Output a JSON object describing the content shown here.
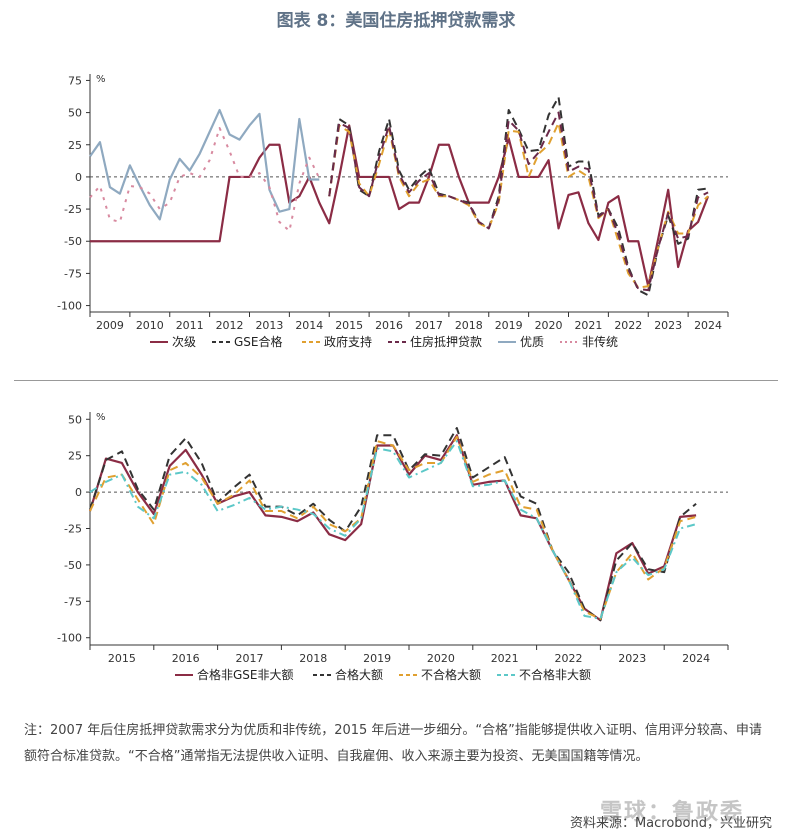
{
  "title": "图表 8：美国住房抵押贷款需求",
  "note": "注：2007 年后住房抵押贷款需求分为优质和非传统，2015 年后进一步细分。“合格”指能够提供收入证明、信用评分较高、申请额符合标准贷款。“不合格”通常指无法提供收入证明、自我雇佣、收入来源主要为投资、无美国国籍等情况。",
  "source": "资料来源：Macrobond，兴业研究",
  "watermark": "雪球：鲁政委",
  "chart_data": [
    {
      "type": "line",
      "ylabel": "%",
      "ylim": [
        -105,
        80
      ],
      "yticks": [
        75,
        50,
        25,
        0,
        -25,
        -50,
        -75,
        -100
      ],
      "xlim": [
        2009.0,
        2025.0
      ],
      "x_tick_labels": [
        "2009",
        "2010",
        "2011",
        "2012",
        "2013",
        "2014",
        "2015",
        "2016",
        "2017",
        "2018",
        "2019",
        "2020",
        "2021",
        "2022",
        "2023",
        "2024"
      ],
      "zero_line": true,
      "legend_position": "bottom",
      "series": [
        {
          "name": "次级",
          "color": "#8b2c45",
          "dash": "solid",
          "x": [
            2009.0,
            2011.0,
            2011.25,
            2011.5,
            2011.75,
            2012.0,
            2012.25,
            2012.5,
            2012.75,
            2013.0,
            2013.25,
            2013.5,
            2013.75,
            2014.0,
            2014.25,
            2014.5,
            2014.75,
            2015.0,
            2015.25,
            2015.5,
            2015.75,
            2016.0,
            2016.25,
            2016.5,
            2016.75,
            2017.0,
            2017.25,
            2017.5,
            2017.75,
            2018.0,
            2018.25,
            2018.5,
            2018.75,
            2019.0,
            2019.25,
            2019.5,
            2019.75,
            2020.0,
            2020.25,
            2020.5,
            2020.75,
            2021.0,
            2021.25,
            2021.5,
            2021.75,
            2022.0,
            2022.25,
            2022.5,
            2022.75,
            2023.0,
            2023.25,
            2023.5,
            2023.75,
            2024.0,
            2024.25,
            2024.5
          ],
          "values": [
            -50,
            -50,
            -50,
            -50,
            -50,
            -50,
            -50,
            0,
            0,
            0,
            15,
            25,
            25,
            -20,
            -15,
            0,
            -20,
            -36,
            0,
            40,
            0,
            0,
            0,
            0,
            -25,
            -20,
            -20,
            0,
            25,
            25,
            0,
            -20,
            -20,
            -20,
            0,
            30,
            0,
            0,
            0,
            13,
            -40,
            -14,
            -12,
            -36,
            -49,
            -20,
            -15,
            -50,
            -50,
            -85,
            -48,
            -10,
            -70,
            -42,
            -35,
            -15
          ]
        },
        {
          "name": "GSE合格",
          "color": "#333333",
          "dash": "8,5",
          "x": [
            2015.0,
            2015.25,
            2015.5,
            2015.75,
            2016.0,
            2016.25,
            2016.5,
            2016.75,
            2017.0,
            2017.25,
            2017.5,
            2017.75,
            2018.0,
            2018.25,
            2018.5,
            2018.75,
            2019.0,
            2019.25,
            2019.5,
            2019.75,
            2020.0,
            2020.25,
            2020.5,
            2020.75,
            2021.0,
            2021.25,
            2021.5,
            2021.75,
            2022.0,
            2022.25,
            2022.5,
            2022.75,
            2023.0,
            2023.25,
            2023.5,
            2023.75,
            2024.0,
            2024.25,
            2024.5
          ],
          "values": [
            -15,
            45,
            40,
            -10,
            -15,
            20,
            45,
            5,
            -10,
            0,
            7,
            -13,
            -15,
            -18,
            -20,
            -35,
            -40,
            -15,
            52,
            37,
            20,
            21,
            48,
            62,
            8,
            12,
            12,
            -30,
            -25,
            -40,
            -70,
            -88,
            -92,
            -55,
            -30,
            -52,
            -48,
            -10,
            -9
          ]
        },
        {
          "name": "政府支持",
          "color": "#e0a030",
          "dash": "8,5",
          "x": [
            2015.0,
            2015.25,
            2015.5,
            2015.75,
            2016.0,
            2016.25,
            2016.5,
            2016.75,
            2017.0,
            2017.25,
            2017.5,
            2017.75,
            2018.0,
            2018.25,
            2018.5,
            2018.75,
            2019.0,
            2019.25,
            2019.5,
            2019.75,
            2020.0,
            2020.25,
            2020.5,
            2020.75,
            2021.0,
            2021.25,
            2021.5,
            2021.75,
            2022.0,
            2022.25,
            2022.5,
            2022.75,
            2023.0,
            2023.25,
            2023.5,
            2023.75,
            2024.0,
            2024.25,
            2024.5
          ],
          "values": [
            -15,
            40,
            35,
            -5,
            -15,
            10,
            37,
            0,
            -15,
            -5,
            -2,
            -15,
            -15,
            -18,
            -22,
            -36,
            -40,
            -20,
            36,
            35,
            0,
            18,
            25,
            42,
            0,
            5,
            0,
            -32,
            -25,
            -50,
            -75,
            -86,
            -85,
            -55,
            -27,
            -44,
            -44,
            -22,
            -15
          ]
        },
        {
          "name": "住房抵押贷款",
          "color": "#6b2a4a",
          "dash": "8,5",
          "x": [
            2015.0,
            2015.25,
            2015.5,
            2015.75,
            2016.0,
            2016.25,
            2016.5,
            2016.75,
            2017.0,
            2017.25,
            2017.5,
            2017.75,
            2018.0,
            2018.25,
            2018.5,
            2018.75,
            2019.0,
            2019.25,
            2019.5,
            2019.75,
            2020.0,
            2020.25,
            2020.5,
            2020.75,
            2021.0,
            2021.25,
            2021.5,
            2021.75,
            2022.0,
            2022.25,
            2022.5,
            2022.75,
            2023.0,
            2023.25,
            2023.5,
            2023.75,
            2024.0,
            2024.25,
            2024.5
          ],
          "values": [
            -15,
            42,
            38,
            -8,
            -15,
            15,
            40,
            2,
            -12,
            -3,
            3,
            -14,
            -15,
            -18,
            -21,
            -35,
            -40,
            -18,
            44,
            36,
            10,
            19,
            35,
            50,
            4,
            8,
            6,
            -31,
            -25,
            -45,
            -72,
            -87,
            -88,
            -55,
            -28,
            -48,
            -46,
            -16,
            -12
          ]
        },
        {
          "name": "优质",
          "color": "#8fa9c0",
          "dash": "solid",
          "x": [
            2009.0,
            2009.25,
            2009.5,
            2009.75,
            2010.0,
            2010.25,
            2010.5,
            2010.75,
            2011.0,
            2011.25,
            2011.5,
            2011.75,
            2012.0,
            2012.25,
            2012.5,
            2012.75,
            2013.0,
            2013.25,
            2013.5,
            2013.75,
            2014.0,
            2014.25,
            2014.5,
            2014.75
          ],
          "values": [
            16,
            27,
            -8,
            -13,
            9,
            -7,
            -22,
            -33,
            -2,
            14,
            5,
            18,
            35,
            52,
            33,
            29,
            40,
            49,
            -10,
            -27,
            -25,
            45,
            -2,
            -2
          ]
        },
        {
          "name": "非传统",
          "color": "#d88aa0",
          "dash": "3,6",
          "x": [
            2009.0,
            2009.25,
            2009.5,
            2009.75,
            2010.0,
            2010.25,
            2010.5,
            2010.75,
            2011.0,
            2011.25,
            2011.5,
            2011.75,
            2012.0,
            2012.25,
            2012.5,
            2012.75,
            2013.0,
            2013.25,
            2013.5,
            2013.75,
            2014.0,
            2014.25,
            2014.5,
            2014.75
          ],
          "values": [
            -16,
            -7,
            -33,
            -35,
            -7,
            -8,
            -13,
            -25,
            -20,
            0,
            3,
            0,
            13,
            38,
            20,
            0,
            0,
            3,
            -8,
            -35,
            -42,
            -5,
            15,
            -1
          ]
        }
      ]
    },
    {
      "type": "line",
      "ylabel": "%",
      "ylim": [
        -105,
        55
      ],
      "yticks": [
        50,
        25,
        0,
        -25,
        -50,
        -75,
        -100
      ],
      "xlim": [
        2015.0,
        2025.0
      ],
      "x_tick_labels": [
        "2015",
        "2016",
        "2017",
        "2018",
        "2019",
        "2020",
        "2021",
        "2022",
        "2023",
        "2024"
      ],
      "zero_line": true,
      "legend_position": "bottom",
      "series": [
        {
          "name": "合格非GSE非大额",
          "color": "#8b2c45",
          "dash": "solid",
          "x": [
            2015.0,
            2015.25,
            2015.5,
            2015.75,
            2016.0,
            2016.25,
            2016.5,
            2016.75,
            2017.0,
            2017.25,
            2017.5,
            2017.75,
            2018.0,
            2018.25,
            2018.5,
            2018.75,
            2019.0,
            2019.25,
            2019.5,
            2019.75,
            2020.0,
            2020.25,
            2020.5,
            2020.75,
            2021.0,
            2021.25,
            2021.5,
            2021.75,
            2022.0,
            2022.25,
            2022.5,
            2022.75,
            2023.0,
            2023.25,
            2023.5,
            2023.75,
            2024.0,
            2024.25,
            2024.5
          ],
          "values": [
            -13,
            23,
            20,
            0,
            -15,
            18,
            29,
            12,
            -8,
            -3,
            0,
            -16,
            -17,
            -20,
            -14,
            -29,
            -33,
            -22,
            32,
            32,
            12,
            25,
            22,
            39,
            5,
            7,
            8,
            -16,
            -18,
            -40,
            -60,
            -80,
            -88,
            -42,
            -35,
            -56,
            -51,
            -17,
            -16
          ]
        },
        {
          "name": "合格大额",
          "color": "#333333",
          "dash": "8,5",
          "x": [
            2015.0,
            2015.25,
            2015.5,
            2015.75,
            2016.0,
            2016.25,
            2016.5,
            2016.75,
            2017.0,
            2017.25,
            2017.5,
            2017.75,
            2018.0,
            2018.25,
            2018.5,
            2018.75,
            2019.0,
            2019.25,
            2019.5,
            2019.75,
            2020.0,
            2020.25,
            2020.5,
            2020.75,
            2021.0,
            2021.25,
            2021.5,
            2021.75,
            2022.0,
            2022.25,
            2022.5,
            2022.75,
            2023.0,
            2023.25,
            2023.5,
            2023.75,
            2024.0,
            2024.25,
            2024.5
          ],
          "values": [
            -12,
            22,
            28,
            2,
            -12,
            25,
            37,
            20,
            -7,
            3,
            12,
            -10,
            -10,
            -16,
            -8,
            -19,
            -27,
            -10,
            39,
            39,
            15,
            26,
            25,
            44,
            10,
            17,
            24,
            -3,
            -8,
            -40,
            -55,
            -80,
            -88,
            -47,
            -35,
            -53,
            -55,
            -17,
            -8
          ]
        },
        {
          "name": "不合格大额",
          "color": "#e0a030",
          "dash": "8,5",
          "x": [
            2015.0,
            2015.25,
            2015.5,
            2015.75,
            2016.0,
            2016.25,
            2016.5,
            2016.75,
            2017.0,
            2017.25,
            2017.5,
            2017.75,
            2018.0,
            2018.25,
            2018.5,
            2018.75,
            2019.0,
            2019.25,
            2019.5,
            2019.75,
            2020.0,
            2020.25,
            2020.5,
            2020.75,
            2021.0,
            2021.25,
            2021.5,
            2021.75,
            2022.0,
            2022.25,
            2022.5,
            2022.75,
            2023.0,
            2023.25,
            2023.5,
            2023.75,
            2024.0,
            2024.25,
            2024.5
          ],
          "values": [
            -13,
            10,
            12,
            -5,
            -22,
            15,
            20,
            10,
            -8,
            -2,
            8,
            -13,
            -13,
            -18,
            -10,
            -22,
            -27,
            -18,
            35,
            32,
            15,
            20,
            20,
            38,
            7,
            12,
            15,
            -10,
            -12,
            -40,
            -60,
            -82,
            -87,
            -55,
            -42,
            -60,
            -52,
            -20,
            -17
          ]
        },
        {
          "name": "不合格非大额",
          "color": "#5cc8c8",
          "dash": "8,4,2,4",
          "x": [
            2015.0,
            2015.25,
            2015.5,
            2015.75,
            2016.0,
            2016.25,
            2016.5,
            2016.75,
            2017.0,
            2017.25,
            2017.5,
            2017.75,
            2018.0,
            2018.25,
            2018.5,
            2018.75,
            2019.0,
            2019.25,
            2019.5,
            2019.75,
            2020.0,
            2020.25,
            2020.5,
            2020.75,
            2021.0,
            2021.25,
            2021.5,
            2021.75,
            2022.0,
            2022.25,
            2022.5,
            2022.75,
            2023.0,
            2023.25,
            2023.5,
            2023.75,
            2024.0,
            2024.25,
            2024.5
          ],
          "values": [
            0,
            7,
            12,
            -10,
            -18,
            12,
            14,
            5,
            -13,
            -9,
            -4,
            -12,
            -10,
            -12,
            -15,
            -25,
            -30,
            -18,
            30,
            28,
            10,
            15,
            20,
            35,
            4,
            5,
            8,
            -12,
            -18,
            -40,
            -60,
            -85,
            -87,
            -55,
            -45,
            -57,
            -53,
            -25,
            -22
          ]
        }
      ]
    }
  ]
}
